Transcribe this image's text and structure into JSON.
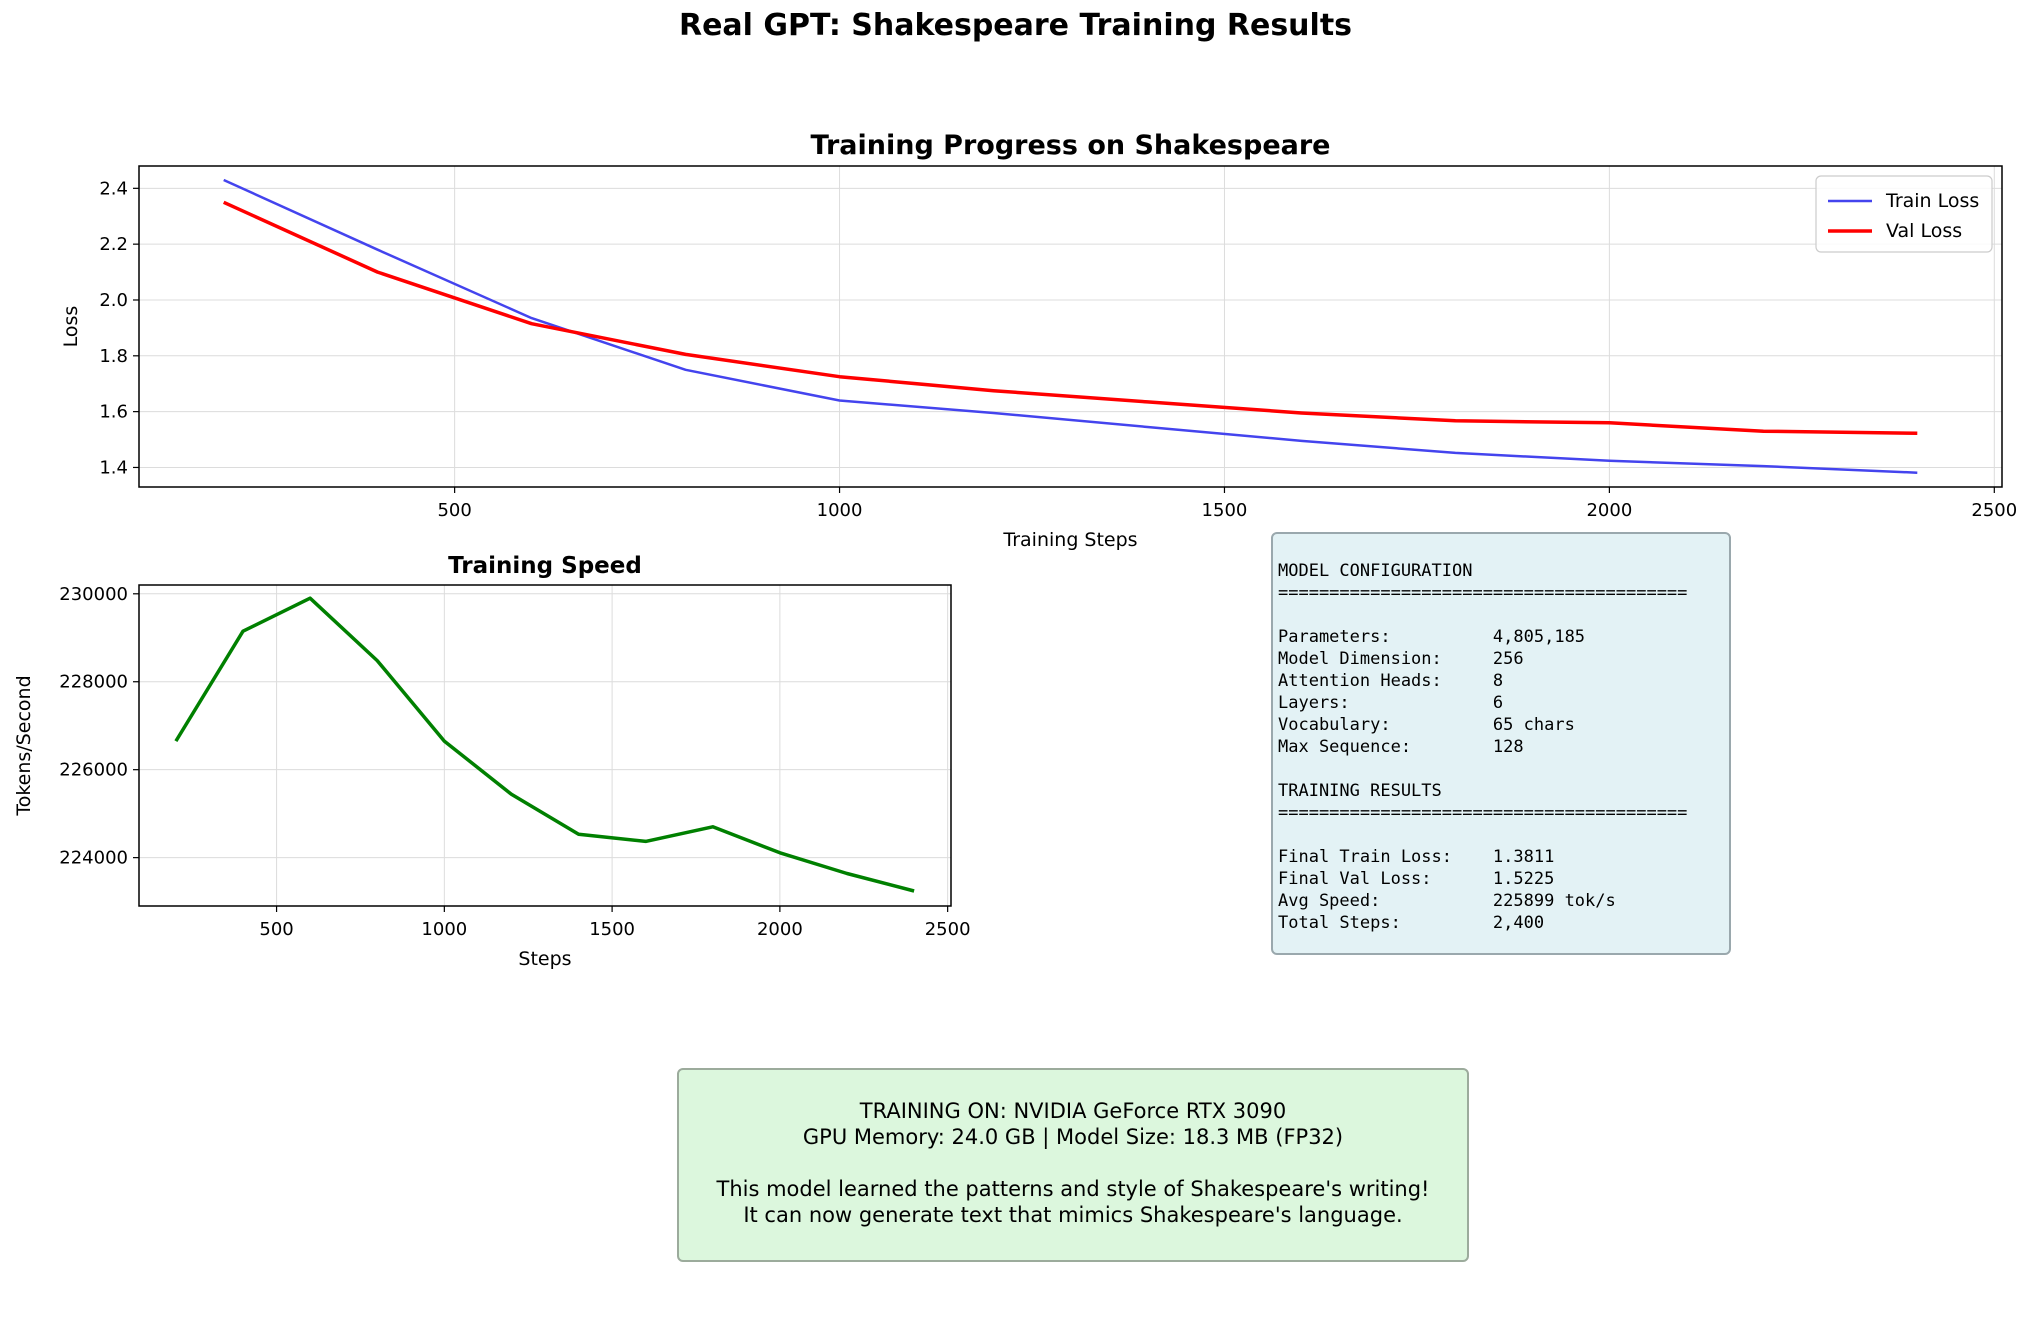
{
  "figure": {
    "title": "Real GPT: Shakespeare Training Results"
  },
  "chart_data": [
    {
      "type": "line",
      "title": "Training Progress on Shakespeare",
      "xlabel": "Training Steps",
      "ylabel": "Loss",
      "xlim": [
        90,
        2510
      ],
      "ylim": [
        1.33,
        2.48
      ],
      "xticks": [
        500,
        1000,
        1500,
        2000,
        2500
      ],
      "yticks": [
        1.4,
        1.6,
        1.8,
        2.0,
        2.2,
        2.4
      ],
      "ytick_labels": [
        "1.4",
        "1.6",
        "1.8",
        "2.0",
        "2.2",
        "2.4"
      ],
      "grid": true,
      "legend_position": "top-right",
      "x": [
        200,
        400,
        600,
        800,
        1000,
        1200,
        1400,
        1600,
        1800,
        2000,
        2200,
        2400
      ],
      "series": [
        {
          "name": "Train Loss",
          "color": "#4444ee",
          "values": [
            2.43,
            2.18,
            1.935,
            1.75,
            1.64,
            1.595,
            1.545,
            1.495,
            1.452,
            1.424,
            1.405,
            1.3811
          ]
        },
        {
          "name": "Val Loss",
          "color": "#ff0000",
          "values": [
            2.35,
            2.1,
            1.915,
            1.805,
            1.725,
            1.675,
            1.635,
            1.595,
            1.567,
            1.56,
            1.53,
            1.5225
          ]
        }
      ]
    },
    {
      "type": "line",
      "title": "Training Speed",
      "xlabel": "Steps",
      "ylabel": "Tokens/Second",
      "xlim": [
        90,
        2510
      ],
      "ylim": [
        222900,
        230200
      ],
      "xticks": [
        500,
        1000,
        1500,
        2000,
        2500
      ],
      "yticks": [
        224000,
        226000,
        228000,
        230000
      ],
      "grid": true,
      "x": [
        200,
        400,
        600,
        800,
        1000,
        1200,
        1400,
        1600,
        1800,
        2000,
        2200,
        2400
      ],
      "series": [
        {
          "color": "#008000",
          "values": [
            226650,
            229150,
            229900,
            228480,
            226650,
            225440,
            224530,
            224370,
            224700,
            224110,
            223640,
            223240
          ]
        }
      ]
    }
  ],
  "config_panel": {
    "lines": [
      "MODEL CONFIGURATION",
      "========================================",
      "",
      "Parameters:          4,805,185",
      "Model Dimension:     256",
      "Attention Heads:     8",
      "Layers:              6",
      "Vocabulary:          65 chars",
      "Max Sequence:        128",
      "",
      "TRAINING RESULTS",
      "========================================",
      "",
      "Final Train Loss:    1.3811",
      "Final Val Loss:      1.5225",
      "Avg Speed:           225899 tok/s",
      "Total Steps:         2,400"
    ]
  },
  "gpu_panel": {
    "line1": "TRAINING ON: NVIDIA GeForce RTX 3090",
    "line2": "GPU Memory: 24.0 GB | Model Size: 18.3 MB (FP32)",
    "line3": "This model learned the patterns and style of Shakespeare's writing!",
    "line4": "It can now generate text that mimics Shakespeare's language."
  }
}
